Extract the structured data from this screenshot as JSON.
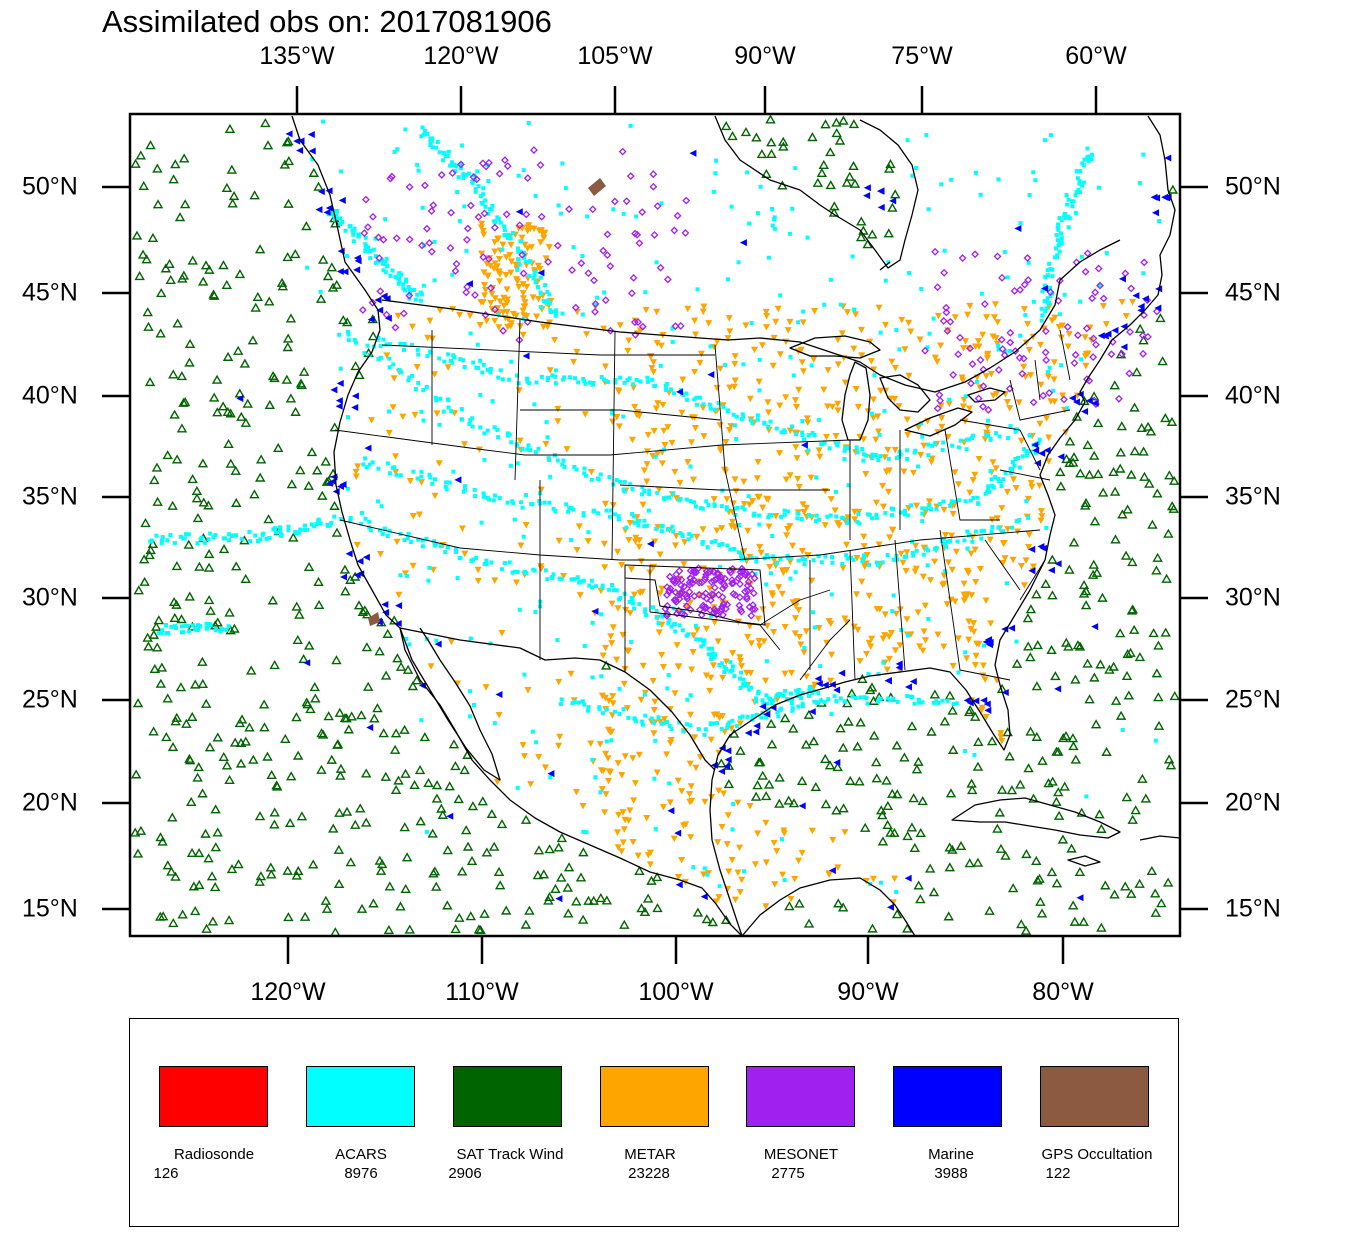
{
  "title": "Assimilated obs on: 2017081906",
  "axes": {
    "top_longitudes": [
      "135°W",
      "120°W",
      "105°W",
      "90°W",
      "75°W",
      "60°W"
    ],
    "bottom_longitudes": [
      "120°W",
      "110°W",
      "100°W",
      "90°W",
      "80°W"
    ],
    "latitudes": [
      "50°N",
      "45°N",
      "40°N",
      "35°N",
      "30°N",
      "25°N",
      "20°N",
      "15°N"
    ]
  },
  "legend": [
    {
      "name": "Radiosonde",
      "count": "126",
      "color": "#ff0000"
    },
    {
      "name": "ACARS",
      "count": "8976",
      "color": "#00ffff"
    },
    {
      "name": "SAT Track Wind",
      "count": "2906",
      "color": "#006400"
    },
    {
      "name": "METAR",
      "count": "23228",
      "color": "#ffa500"
    },
    {
      "name": "MESONET",
      "count": "2775",
      "color": "#a020f0"
    },
    {
      "name": "Marine",
      "count": "3988",
      "color": "#0000ff"
    },
    {
      "name": "GPS Occultation",
      "count": "122",
      "color": "#8b5a40"
    }
  ],
  "colors": {
    "acars": "#00ffff",
    "sat_track_wind": "#006400",
    "metar": "#ffa500",
    "mesonet": "#a020f0",
    "marine": "#0000ff",
    "gps": "#8b5a40",
    "coastline": "#000000"
  }
}
